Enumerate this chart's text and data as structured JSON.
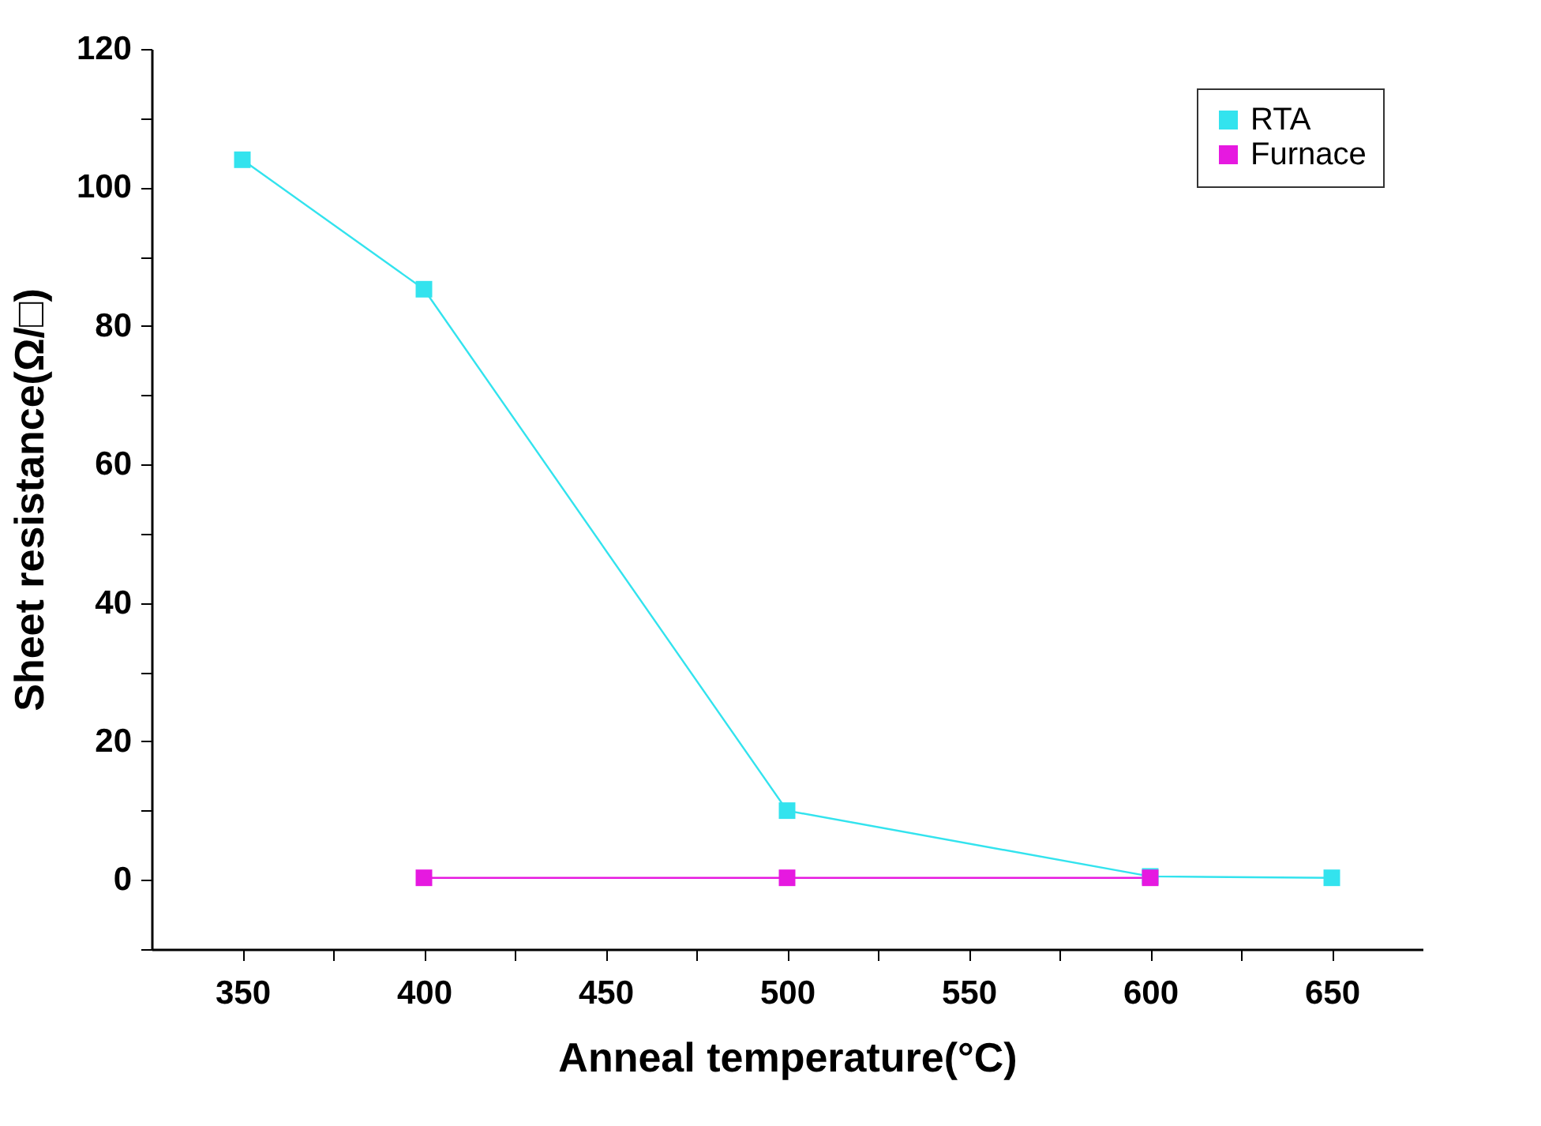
{
  "chart_data": {
    "type": "line",
    "xlabel": "Anneal  temperature(°C)",
    "ylabel": "Sheet resistance(Ω/□)",
    "xlim": [
      325,
      675
    ],
    "ylim": [
      -10,
      120
    ],
    "xticks": [
      350,
      {
        "value": 375,
        "label": null
      },
      400,
      {
        "value": 425,
        "label": null
      },
      450,
      {
        "value": 475,
        "label": null
      },
      500,
      {
        "value": 525,
        "label": null
      },
      550,
      {
        "value": 575,
        "label": null
      },
      600,
      {
        "value": 625,
        "label": null
      },
      650
    ],
    "yticks": [
      {
        "value": -10,
        "label": null
      },
      0,
      {
        "value": 10,
        "label": null
      },
      20,
      {
        "value": 30,
        "label": null
      },
      40,
      {
        "value": 50,
        "label": null
      },
      60,
      {
        "value": 70,
        "label": null
      },
      80,
      {
        "value": 90,
        "label": null
      },
      100,
      {
        "value": 110,
        "label": null
      },
      120
    ],
    "marker": "square",
    "line_style": "solid",
    "grid": false,
    "legend": "top right",
    "series": [
      {
        "name": "RTA",
        "color": "#33e3ee",
        "x": [
          350,
          400,
          500,
          600,
          650
        ],
        "values": [
          104,
          85.3,
          10,
          0.5,
          0.3
        ]
      },
      {
        "name": "Furnace",
        "color": "#e619e0",
        "x": [
          400,
          500,
          600
        ],
        "values": [
          0.3,
          0.3,
          0.3
        ]
      }
    ]
  }
}
